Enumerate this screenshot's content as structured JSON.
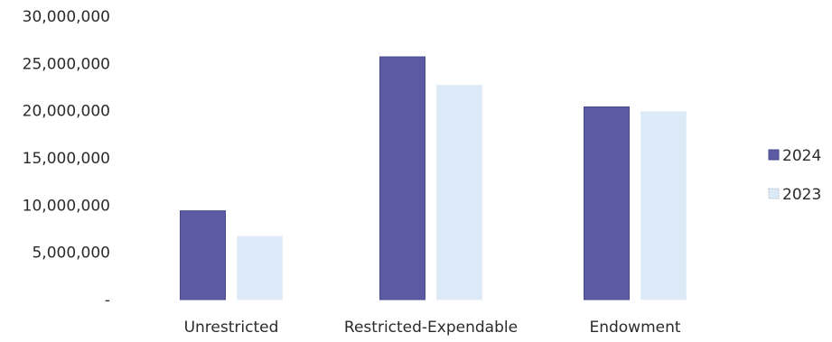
{
  "chart_data": {
    "type": "bar",
    "title": "",
    "xlabel": "",
    "ylabel": "",
    "categories": [
      "Unrestricted",
      "Restricted-Expendable",
      "Endowment"
    ],
    "series": [
      {
        "name": "2024",
        "values": [
          9400000,
          25700000,
          20400000
        ],
        "color": "#5b5aa3"
      },
      {
        "name": "2023",
        "values": [
          6700000,
          22700000,
          19900000
        ],
        "color": "#dceaf7"
      }
    ],
    "ylim": [
      0,
      30000000
    ],
    "y_ticks": [
      {
        "value": 0,
        "label": "-"
      },
      {
        "value": 5000000,
        "label": "5,000,000"
      },
      {
        "value": 10000000,
        "label": "10,000,000"
      },
      {
        "value": 15000000,
        "label": "15,000,000"
      },
      {
        "value": 20000000,
        "label": "20,000,000"
      },
      {
        "value": 25000000,
        "label": "25,000,000"
      },
      {
        "value": 30000000,
        "label": "30,000,000"
      }
    ],
    "grid": false,
    "legend_position": "right"
  }
}
